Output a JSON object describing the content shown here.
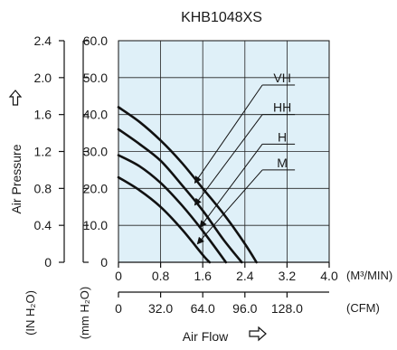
{
  "chart_data": {
    "type": "line",
    "title": "KHB1048XS",
    "xlabel": "Air Flow",
    "ylabel": "Air Pressure",
    "x_ticks": [
      "0",
      "0.8",
      "1.6",
      "2.4",
      "3.2",
      "4.0"
    ],
    "x_unit": "(M³/MIN)",
    "x2_ticks": [
      "0",
      "32.0",
      "64.0",
      "96.0",
      "128.0"
    ],
    "x2_unit": "(CFM)",
    "y_ticks": [
      "0",
      "10.0",
      "20.0",
      "30.0",
      "40.0",
      "50.0",
      "60.0"
    ],
    "y_unit": "(mm H₂O)",
    "y2_ticks": [
      "0",
      "0.4",
      "0.8",
      "1.2",
      "1.6",
      "2.0",
      "2.4"
    ],
    "y2_unit": "(IN H₂O)",
    "xlim": [
      0,
      4.0
    ],
    "ylim": [
      0,
      60
    ],
    "x_cfm_per_unit": 40,
    "y_inch_per_unit": 0.04,
    "grid": true,
    "background_color": "#dff0f8",
    "line_color": "#111111",
    "series": [
      {
        "name": "VH",
        "x": [
          0,
          0.4,
          0.8,
          1.2,
          1.6,
          2.0,
          2.4,
          2.62
        ],
        "y": [
          42,
          38,
          33,
          27,
          20,
          13,
          5,
          0
        ],
        "label_x": 2.8,
        "label_y": 48,
        "arrow_x": 1.45,
        "arrow_y": 21.5
      },
      {
        "name": "HH",
        "x": [
          0,
          0.4,
          0.8,
          1.2,
          1.6,
          2.0,
          2.34
        ],
        "y": [
          36,
          32,
          27.5,
          21,
          14,
          6,
          0
        ],
        "label_x": 2.8,
        "label_y": 40,
        "arrow_x": 1.45,
        "arrow_y": 15.5
      },
      {
        "name": "H",
        "x": [
          0,
          0.4,
          0.8,
          1.2,
          1.6,
          2.04
        ],
        "y": [
          29,
          26,
          21.5,
          15.5,
          8.5,
          0
        ],
        "label_x": 2.8,
        "label_y": 32,
        "arrow_x": 1.55,
        "arrow_y": 9.5
      },
      {
        "name": "M",
        "x": [
          0,
          0.4,
          0.8,
          1.2,
          1.6,
          1.73
        ],
        "y": [
          23,
          19.5,
          15,
          9,
          2,
          0
        ],
        "label_x": 2.8,
        "label_y": 25,
        "arrow_x": 1.5,
        "arrow_y": 5
      }
    ]
  }
}
